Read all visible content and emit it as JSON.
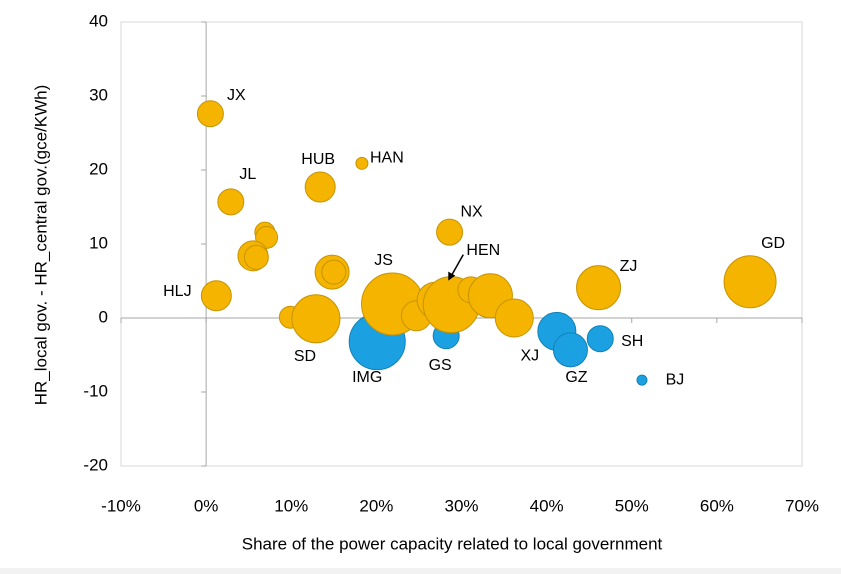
{
  "chart_data": {
    "type": "scatter",
    "xlabel": "Share  of the power capacity related to local government",
    "ylabel": "HR_local gov. - HR_central gov.(gce/KWh)",
    "xlim": [
      -10,
      70
    ],
    "xticks": [
      {
        "value": -10,
        "label": "-10%"
      },
      {
        "value": 0,
        "label": "0%"
      },
      {
        "value": 10,
        "label": "10%"
      },
      {
        "value": 20,
        "label": "20%"
      },
      {
        "value": 30,
        "label": "30%"
      },
      {
        "value": 40,
        "label": "40%"
      },
      {
        "value": 50,
        "label": "50%"
      },
      {
        "value": 60,
        "label": "60%"
      },
      {
        "value": 70,
        "label": "70%"
      }
    ],
    "ylim": [
      -20,
      40
    ],
    "yticks": [
      -20,
      -10,
      0,
      10,
      20,
      30,
      40
    ],
    "series": [
      {
        "color": "#1ba1e2",
        "labels": [
          "IMG",
          "GS",
          "XJ",
          "GZ",
          "SH",
          "BJ"
        ],
        "x": [
          20.1,
          28.2,
          41.2,
          42.8,
          46.3,
          51.2
        ],
        "values": [
          -3.2,
          -2.4,
          -1.8,
          -4.3,
          -2.8,
          -8.4
        ],
        "sizes": [
          28,
          13,
          19,
          17,
          13,
          5
        ]
      },
      {
        "color": "#f5b400",
        "labels": [
          "JX",
          "JL",
          "HUB",
          "HAN",
          "NX",
          null,
          null,
          null,
          null,
          "HLJ",
          null,
          null,
          null,
          "SD",
          "JS",
          null,
          null,
          "HEN",
          null,
          null,
          null,
          "ZJ",
          "GD"
        ],
        "x": [
          0.5,
          2.9,
          13.4,
          18.3,
          28.6,
          6.9,
          7.1,
          5.5,
          5.9,
          1.2,
          14.8,
          15.0,
          9.9,
          12.9,
          21.9,
          24.7,
          26.9,
          28.8,
          31.1,
          33.4,
          36.2,
          46.1,
          63.9
        ],
        "values": [
          27.6,
          15.7,
          17.7,
          20.9,
          11.6,
          11.6,
          10.9,
          8.4,
          8.2,
          3.0,
          6.2,
          6.2,
          0.1,
          -0.1,
          1.9,
          0.3,
          2.4,
          1.8,
          3.8,
          3.0,
          0,
          4.1,
          4.9
        ],
        "sizes": [
          13,
          13,
          15,
          6,
          13,
          10,
          11,
          15,
          12,
          15,
          17,
          12,
          11,
          24,
          31,
          15,
          18,
          28,
          13,
          22,
          19,
          22,
          26
        ]
      }
    ]
  }
}
